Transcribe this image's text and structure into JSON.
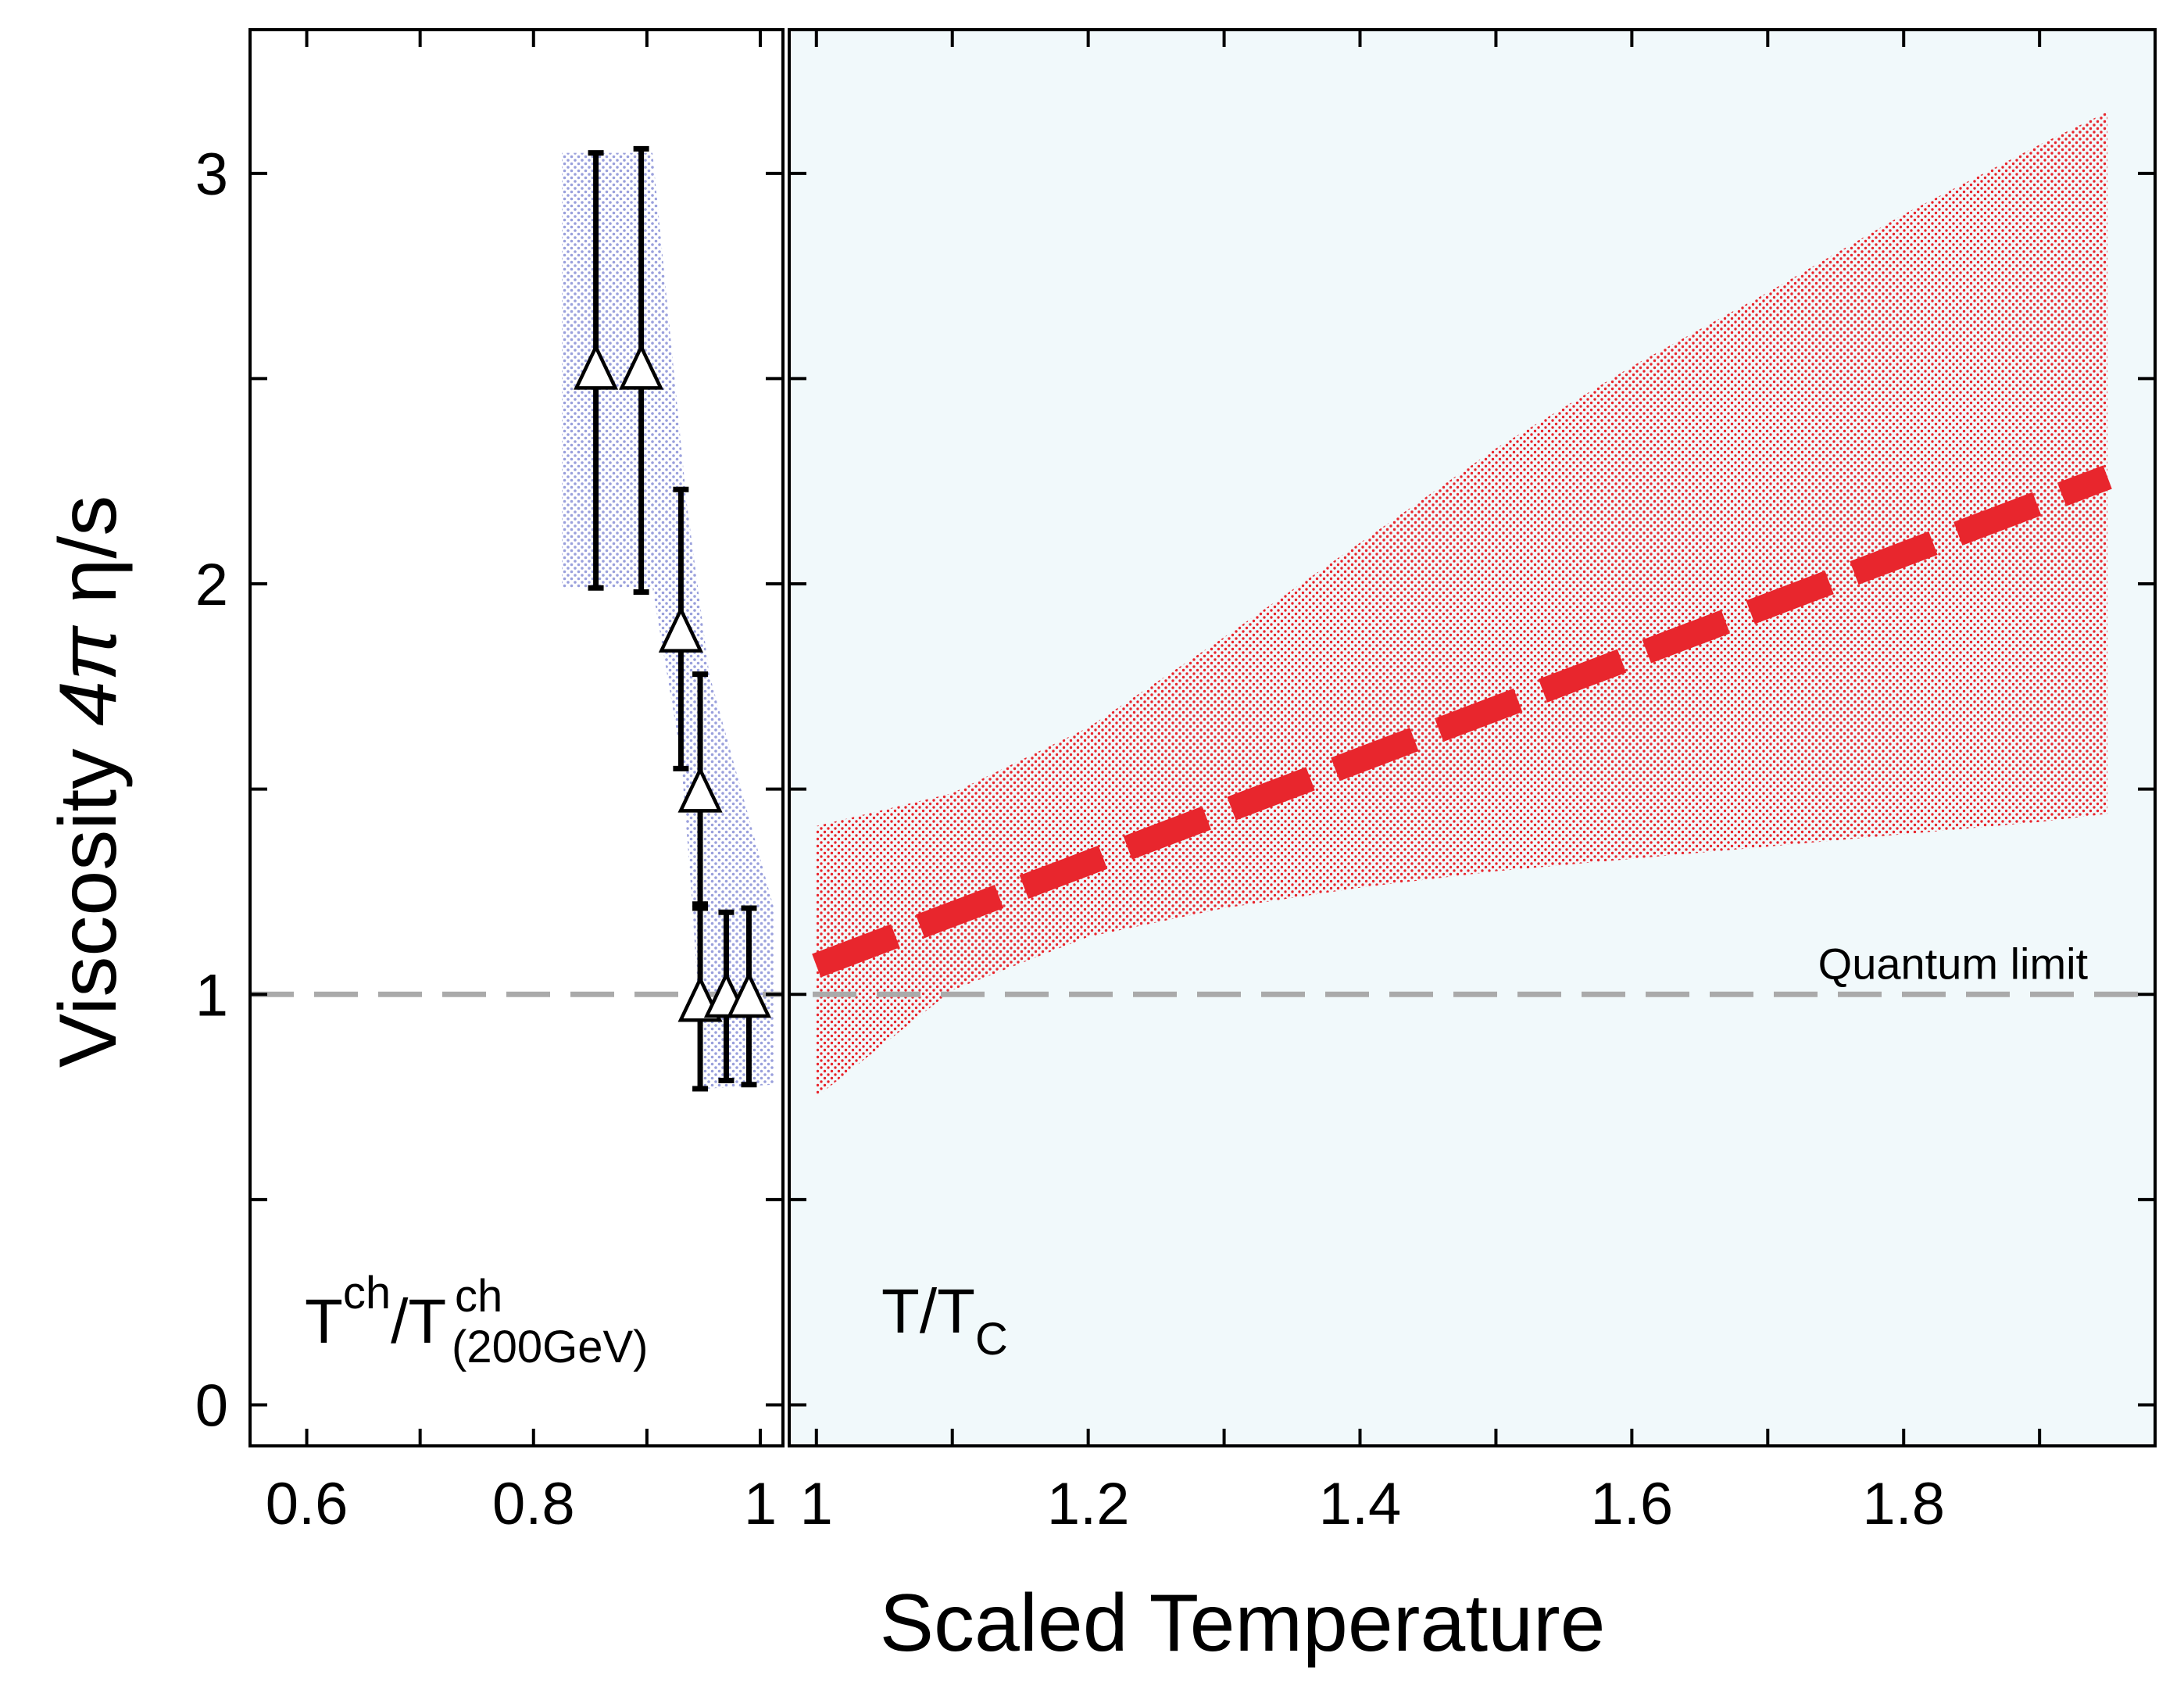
{
  "chart_data": {
    "type": "scatter",
    "title": "",
    "xlabel": "Scaled Temperature",
    "ylabel_parts": {
      "word": "Viscosity ",
      "factor": "4π",
      "ratio": " η/s"
    },
    "ylim": [
      -0.1,
      3.35
    ],
    "yticks": [
      0,
      1,
      2,
      3
    ],
    "ytick_labels": [
      "0",
      "1",
      "2",
      "3"
    ],
    "panels": [
      {
        "name": "left",
        "label_main": "T",
        "label_sup1": "ch",
        "label_mid": "/T",
        "label_sup2": "ch",
        "label_sub2": "(200GeV)",
        "xlim": [
          0.55,
          1.02
        ],
        "xticks": [
          0.6,
          0.7,
          0.8,
          0.9,
          1.0
        ],
        "xtick_labels": [
          "0.6",
          "0.8",
          "1"
        ],
        "xtick_label_values": [
          0.6,
          0.8,
          1.0
        ],
        "series": [
          {
            "name": "data",
            "marker": "open-triangle",
            "points": [
              {
                "x": 0.855,
                "y": 2.52,
                "ylo": 1.99,
                "yhi": 3.05
              },
              {
                "x": 0.895,
                "y": 2.52,
                "ylo": 1.98,
                "yhi": 3.06
              },
              {
                "x": 0.93,
                "y": 1.88,
                "ylo": 1.55,
                "yhi": 2.23
              },
              {
                "x": 0.947,
                "y": 1.49,
                "ylo": 1.22,
                "yhi": 1.78
              },
              {
                "x": 0.947,
                "y": 0.98,
                "ylo": 0.77,
                "yhi": 1.21
              },
              {
                "x": 0.97,
                "y": 0.99,
                "ylo": 0.79,
                "yhi": 1.2
              },
              {
                "x": 0.99,
                "y": 0.99,
                "ylo": 0.78,
                "yhi": 1.21
              }
            ]
          }
        ],
        "band": {
          "color": "#a8aee0",
          "upper": [
            [
              0.825,
              3.05
            ],
            [
              0.905,
              3.05
            ],
            [
              0.935,
              2.2
            ],
            [
              0.955,
              1.78
            ],
            [
              1.012,
              1.21
            ]
          ],
          "lower": [
            [
              1.012,
              0.78
            ],
            [
              0.95,
              0.77
            ],
            [
              0.94,
              1.22
            ],
            [
              0.93,
              1.58
            ],
            [
              0.905,
              1.99
            ],
            [
              0.825,
              1.99
            ]
          ]
        }
      },
      {
        "name": "right",
        "label_main": "T/T",
        "label_sub": "C",
        "xlim": [
          0.98,
          1.985
        ],
        "xticks": [
          1.0,
          1.1,
          1.2,
          1.3,
          1.4,
          1.5,
          1.6,
          1.7,
          1.8,
          1.9
        ],
        "xtick_labels": [
          "1",
          "1.2",
          "1.4",
          "1.6",
          "1.8"
        ],
        "xtick_label_values": [
          1.0,
          1.2,
          1.4,
          1.6,
          1.8
        ],
        "background": "#f1f9fb",
        "series": [
          {
            "name": "central",
            "style": "dashed",
            "color": "#e8262d",
            "x": [
              1.0,
              1.95
            ],
            "y": [
              1.07,
              2.26
            ]
          }
        ],
        "band": {
          "color": "#e8262d",
          "upper": [
            [
              1.0,
              1.41
            ],
            [
              1.1,
              1.49
            ],
            [
              1.2,
              1.65
            ],
            [
              1.3,
              1.87
            ],
            [
              1.4,
              2.1
            ],
            [
              1.5,
              2.33
            ],
            [
              1.6,
              2.53
            ],
            [
              1.7,
              2.71
            ],
            [
              1.8,
              2.9
            ],
            [
              1.9,
              3.07
            ],
            [
              1.95,
              3.15
            ]
          ],
          "lower": [
            [
              1.95,
              1.44
            ],
            [
              1.9,
              1.42
            ],
            [
              1.8,
              1.39
            ],
            [
              1.7,
              1.36
            ],
            [
              1.6,
              1.33
            ],
            [
              1.5,
              1.3
            ],
            [
              1.4,
              1.26
            ],
            [
              1.3,
              1.21
            ],
            [
              1.2,
              1.14
            ],
            [
              1.1,
              1.01
            ],
            [
              1.05,
              0.88
            ],
            [
              1.0,
              0.75
            ]
          ]
        }
      }
    ],
    "reference_line": {
      "y": 1.0,
      "label": "Quantum limit",
      "color": "#aaaaaa",
      "style": "dashed"
    }
  }
}
